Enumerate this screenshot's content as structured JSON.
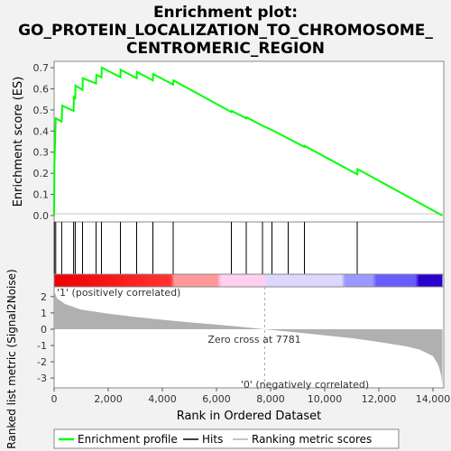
{
  "chart_data": {
    "type": "line",
    "title_lines": [
      "Enrichment plot:",
      "GO_PROTEIN_LOCALIZATION_TO_CHROMOSOME_",
      "CENTROMERIC_REGION"
    ],
    "xlabel": "Rank in Ordered Dataset",
    "ylabel_es": "Enrichment score (ES)",
    "ylabel_metric": "Ranked list metric (Signal2Noise)",
    "xlim": [
      0,
      14400
    ],
    "x_ticks": [
      0,
      2000,
      4000,
      6000,
      8000,
      10000,
      12000,
      14000
    ],
    "x_tick_labels": [
      "0",
      "2,000",
      "4,000",
      "6,000",
      "8,000",
      "10,000",
      "12,000",
      "14,000"
    ],
    "es_ylim": [
      -0.03,
      0.73
    ],
    "es_ticks": [
      0.0,
      0.1,
      0.2,
      0.3,
      0.4,
      0.5,
      0.6,
      0.7
    ],
    "es_tick_labels": [
      "0.0",
      "0.1",
      "0.2",
      "0.3",
      "0.4",
      "0.5",
      "0.6",
      "0.7"
    ],
    "metric_ylim": [
      -3.6,
      2.6
    ],
    "metric_ticks": [
      2,
      1,
      0,
      -1,
      -2,
      -3
    ],
    "metric_tick_labels": [
      "2",
      "1",
      "0",
      "-1",
      "-2",
      "-3"
    ],
    "hits": [
      10,
      60,
      280,
      720,
      780,
      1050,
      1550,
      1750,
      2450,
      3050,
      3650,
      4400,
      6550,
      7100,
      7700,
      8050,
      8650,
      9250,
      11200
    ],
    "es_points": [
      [
        0,
        0.0
      ],
      [
        10,
        0.24
      ],
      [
        60,
        0.46
      ],
      [
        280,
        0.445
      ],
      [
        300,
        0.52
      ],
      [
        720,
        0.495
      ],
      [
        730,
        0.56
      ],
      [
        780,
        0.555
      ],
      [
        790,
        0.615
      ],
      [
        1050,
        0.595
      ],
      [
        1060,
        0.65
      ],
      [
        1550,
        0.625
      ],
      [
        1560,
        0.665
      ],
      [
        1750,
        0.655
      ],
      [
        1760,
        0.7
      ],
      [
        2450,
        0.655
      ],
      [
        2460,
        0.69
      ],
      [
        3050,
        0.65
      ],
      [
        3060,
        0.68
      ],
      [
        3650,
        0.64
      ],
      [
        3660,
        0.67
      ],
      [
        4400,
        0.62
      ],
      [
        4410,
        0.64
      ],
      [
        6550,
        0.49
      ],
      [
        6560,
        0.495
      ],
      [
        7100,
        0.46
      ],
      [
        7110,
        0.465
      ],
      [
        7700,
        0.425
      ],
      [
        8050,
        0.405
      ],
      [
        8650,
        0.365
      ],
      [
        9250,
        0.325
      ],
      [
        9260,
        0.33
      ],
      [
        11200,
        0.195
      ],
      [
        11210,
        0.22
      ],
      [
        14350,
        0.0
      ]
    ],
    "metric_points": [
      [
        0,
        2.4
      ],
      [
        100,
        1.9
      ],
      [
        400,
        1.55
      ],
      [
        1000,
        1.2
      ],
      [
        2000,
        0.95
      ],
      [
        3000,
        0.75
      ],
      [
        4000,
        0.58
      ],
      [
        5000,
        0.42
      ],
      [
        6000,
        0.28
      ],
      [
        7000,
        0.13
      ],
      [
        7781,
        0.0
      ],
      [
        9000,
        -0.2
      ],
      [
        10000,
        -0.38
      ],
      [
        11000,
        -0.55
      ],
      [
        12000,
        -0.78
      ],
      [
        13000,
        -1.05
      ],
      [
        13500,
        -1.25
      ],
      [
        14000,
        -1.65
      ],
      [
        14200,
        -2.2
      ],
      [
        14300,
        -2.8
      ],
      [
        14350,
        -3.5
      ]
    ],
    "zero_cross_label": "Zero cross at 7781",
    "pos_label": "'1' (positively correlated)",
    "neg_label": "'0' (negatively correlated)",
    "legend": [
      "Enrichment profile",
      "Hits",
      "Ranking metric scores"
    ],
    "colors": {
      "es_line": "#00ff00",
      "hits": "#000000",
      "metric_fill": "#b0b0b0",
      "pos_text": "#cc0000",
      "neg_text": "#0000cc",
      "bar_gradient": [
        "#ee0000",
        "#ff3333",
        "#ff9999",
        "#ffd0f0",
        "#dcd8ff",
        "#9999ff",
        "#6a5cff",
        "#2a00cc"
      ]
    }
  }
}
